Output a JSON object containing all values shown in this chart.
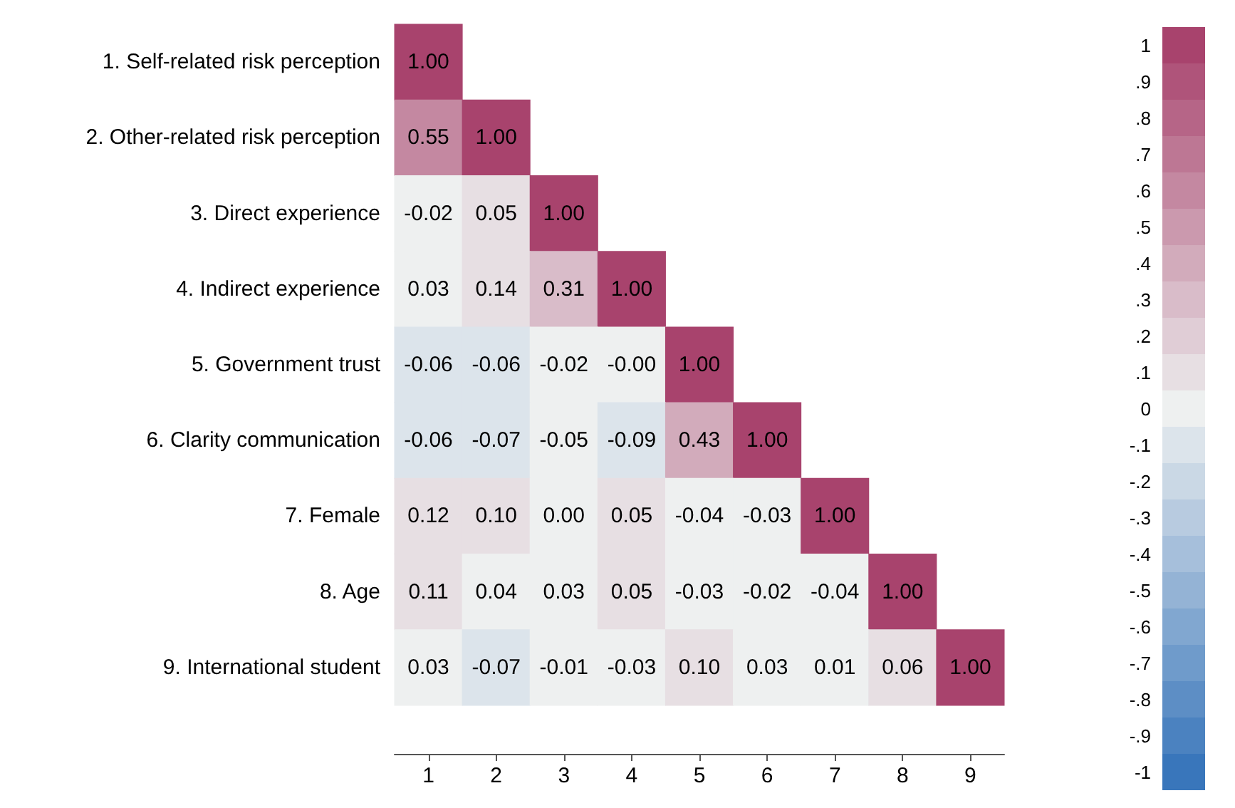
{
  "chart_data": {
    "type": "heatmap",
    "categories": [
      "1",
      "2",
      "3",
      "4",
      "5",
      "6",
      "7",
      "8",
      "9"
    ],
    "y_categories": [
      "1. Self-related risk perception",
      "2. Other-related risk perception",
      "3. Direct experience",
      "4. Indirect experience",
      "5. Government trust",
      "6. Clarity communication",
      "7. Female",
      "8. Age",
      "9. International student"
    ],
    "cells": [
      [
        1.0,
        null,
        null,
        null,
        null,
        null,
        null,
        null,
        null
      ],
      [
        0.55,
        1.0,
        null,
        null,
        null,
        null,
        null,
        null,
        null
      ],
      [
        -0.02,
        0.05,
        1.0,
        null,
        null,
        null,
        null,
        null,
        null
      ],
      [
        0.03,
        0.14,
        0.31,
        1.0,
        null,
        null,
        null,
        null,
        null
      ],
      [
        -0.06,
        -0.06,
        -0.02,
        0.0,
        1.0,
        null,
        null,
        null,
        null
      ],
      [
        -0.06,
        -0.07,
        -0.05,
        -0.09,
        0.43,
        1.0,
        null,
        null,
        null
      ],
      [
        0.12,
        0.1,
        0.0,
        0.05,
        -0.04,
        -0.03,
        1.0,
        null,
        null
      ],
      [
        0.11,
        0.04,
        0.03,
        0.05,
        -0.03,
        -0.02,
        -0.04,
        1.0,
        null
      ],
      [
        0.03,
        -0.07,
        -0.01,
        -0.03,
        0.1,
        0.03,
        0.01,
        0.06,
        1.0
      ]
    ],
    "cell_labels": [
      [
        "1.00",
        null,
        null,
        null,
        null,
        null,
        null,
        null,
        null
      ],
      [
        "0.55",
        "1.00",
        null,
        null,
        null,
        null,
        null,
        null,
        null
      ],
      [
        "-0.02",
        "0.05",
        "1.00",
        null,
        null,
        null,
        null,
        null,
        null
      ],
      [
        "0.03",
        "0.14",
        "0.31",
        "1.00",
        null,
        null,
        null,
        null,
        null
      ],
      [
        "-0.06",
        "-0.06",
        "-0.02",
        "-0.00",
        "1.00",
        null,
        null,
        null,
        null
      ],
      [
        "-0.06",
        "-0.07",
        "-0.05",
        "-0.09",
        "0.43",
        "1.00",
        null,
        null,
        null
      ],
      [
        "0.12",
        "0.10",
        "0.00",
        "0.05",
        "-0.04",
        "-0.03",
        "1.00",
        null,
        null
      ],
      [
        "0.11",
        "0.04",
        "0.03",
        "0.05",
        "-0.03",
        "-0.02",
        "-0.04",
        "1.00",
        null
      ],
      [
        "0.03",
        "-0.07",
        "-0.01",
        "-0.03",
        "0.10",
        "0.03",
        "0.01",
        "0.06",
        "1.00"
      ]
    ],
    "clim": [
      -1.05,
      1.05
    ],
    "cticks": [
      {
        "value": 1,
        "label": "1"
      },
      {
        "value": 0.9,
        "label": ".9"
      },
      {
        "value": 0.8,
        "label": ".8"
      },
      {
        "value": 0.7,
        "label": ".7"
      },
      {
        "value": 0.6,
        "label": ".6"
      },
      {
        "value": 0.5,
        "label": ".5"
      },
      {
        "value": 0.4,
        "label": ".4"
      },
      {
        "value": 0.3,
        "label": ".3"
      },
      {
        "value": 0.2,
        "label": ".2"
      },
      {
        "value": 0.1,
        "label": ".1"
      },
      0,
      {
        "value": -0.1,
        "label": "-.1"
      },
      {
        "value": -0.2,
        "label": "-.2"
      },
      {
        "value": -0.3,
        "label": "-.3"
      },
      {
        "value": -0.4,
        "label": "-.4"
      },
      {
        "value": -0.5,
        "label": "-.5"
      },
      {
        "value": -0.6,
        "label": "-.6"
      },
      {
        "value": -0.7,
        "label": "-.7"
      },
      {
        "value": -0.8,
        "label": "-.8"
      },
      {
        "value": -0.9,
        "label": "-.9"
      },
      {
        "value": -1,
        "label": "-1"
      }
    ]
  }
}
